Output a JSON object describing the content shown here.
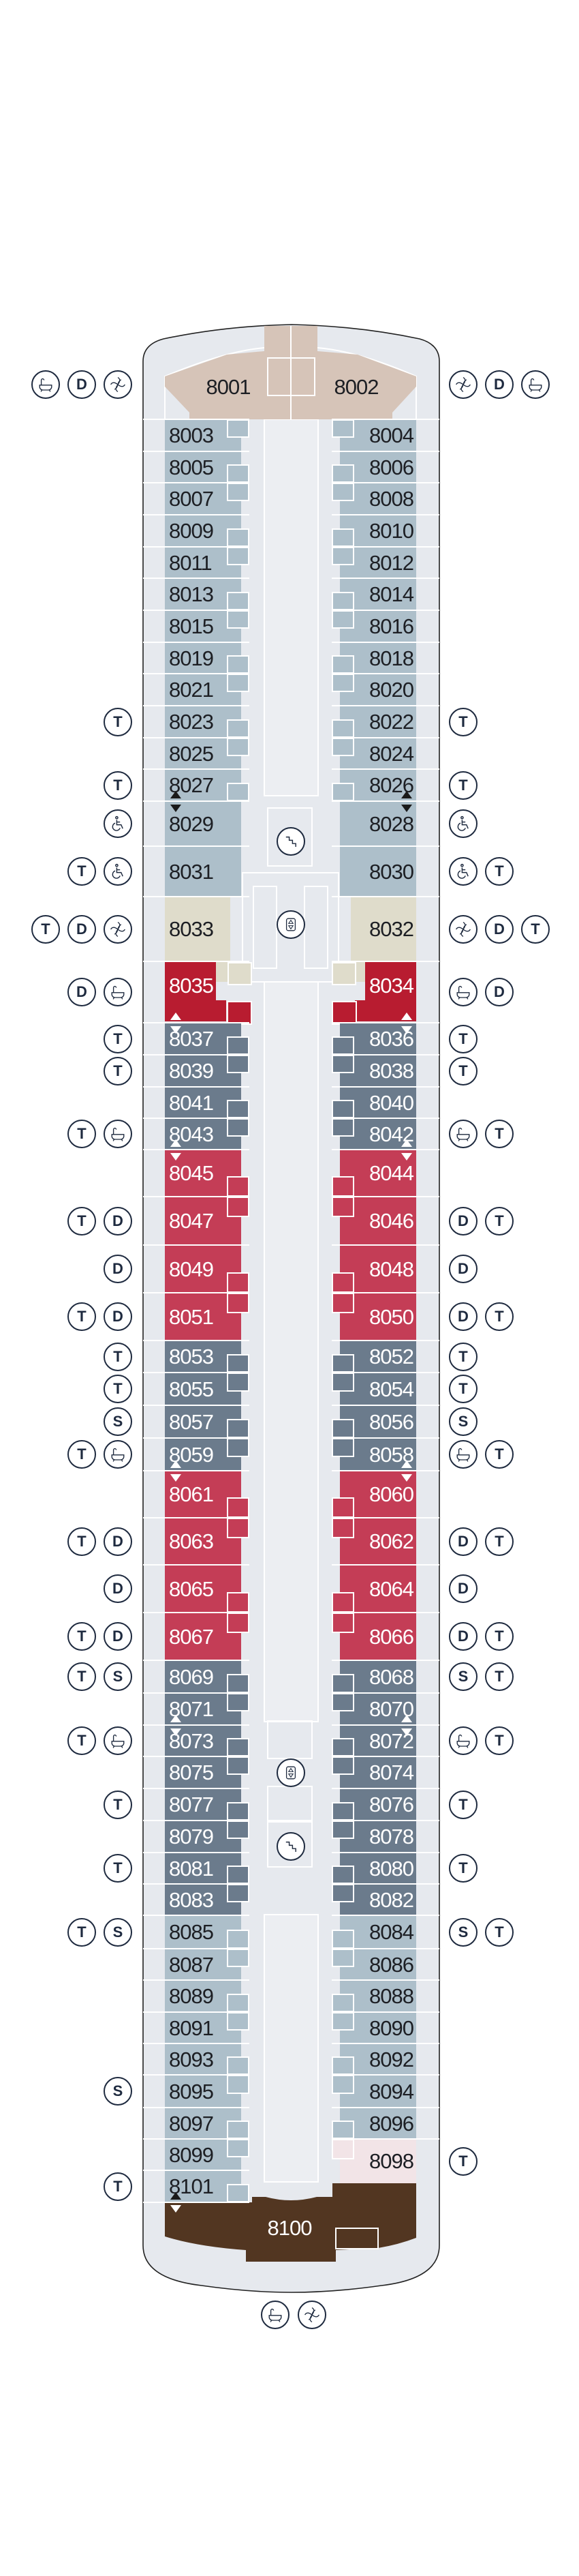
{
  "colors": {
    "hull": "#e6e9ee",
    "hull_outline": "#222222",
    "light": "#adbfca",
    "slate": "#6b7b8c",
    "red": "#c43d56",
    "darkred": "#b81c30",
    "beige": "#dfdccb",
    "tan": "#d6c4b8",
    "brown": "#523621",
    "pink": "#f2e4e7",
    "icon": "#1e2a3f"
  },
  "bow_suites": [
    {
      "number": "8001",
      "category": "tan",
      "icons": [
        "whirlpool",
        "D",
        "bathtub"
      ]
    },
    {
      "number": "8002",
      "category": "tan",
      "icons": [
        "whirlpool",
        "D",
        "bathtub"
      ]
    }
  ],
  "stern_suite": {
    "number": "8100",
    "category": "brown",
    "icons": [
      "bathtub",
      "whirlpool"
    ],
    "marker_top": "down-white"
  },
  "center_symbols": [
    "stairs",
    "elevator",
    "elevator",
    "stairs"
  ],
  "left_cabins": [
    {
      "number": "8003",
      "category": "light",
      "icons": []
    },
    {
      "number": "8005",
      "category": "light",
      "icons": []
    },
    {
      "number": "8007",
      "category": "light",
      "icons": []
    },
    {
      "number": "8009",
      "category": "light",
      "icons": []
    },
    {
      "number": "8011",
      "category": "light",
      "icons": []
    },
    {
      "number": "8013",
      "category": "light",
      "icons": []
    },
    {
      "number": "8015",
      "category": "light",
      "icons": []
    },
    {
      "number": "8019",
      "category": "light",
      "icons": []
    },
    {
      "number": "8021",
      "category": "light",
      "icons": []
    },
    {
      "number": "8023",
      "category": "light",
      "icons": [
        "T"
      ]
    },
    {
      "number": "8025",
      "category": "light",
      "icons": []
    },
    {
      "number": "8027",
      "category": "light",
      "icons": [
        "T"
      ],
      "marker_bottom": "up-black"
    },
    {
      "number": "8029",
      "category": "light",
      "icons": [
        "wheelchair"
      ],
      "marker_top": "down-black"
    },
    {
      "number": "8031",
      "category": "light",
      "icons": [
        "wheelchair",
        "T"
      ]
    },
    {
      "number": "8033",
      "category": "beige",
      "icons": [
        "whirlpool",
        "D",
        "T"
      ]
    },
    {
      "number": "8035",
      "category": "darkred",
      "icons": [
        "bathtub",
        "D"
      ],
      "marker_bottom": "up-white"
    },
    {
      "number": "8037",
      "category": "slate",
      "icons": [
        "T"
      ],
      "marker_top": "down-white"
    },
    {
      "number": "8039",
      "category": "slate",
      "icons": [
        "T"
      ]
    },
    {
      "number": "8041",
      "category": "slate",
      "icons": []
    },
    {
      "number": "8043",
      "category": "slate",
      "icons": [
        "bathtub",
        "T"
      ],
      "marker_bottom": "up-white"
    },
    {
      "number": "8045",
      "category": "red",
      "icons": [],
      "marker_top": "down-white"
    },
    {
      "number": "8047",
      "category": "red",
      "icons": [
        "D",
        "T"
      ]
    },
    {
      "number": "8049",
      "category": "red",
      "icons": [
        "D"
      ]
    },
    {
      "number": "8051",
      "category": "red",
      "icons": [
        "D",
        "T"
      ]
    },
    {
      "number": "8053",
      "category": "slate",
      "icons": [
        "T"
      ]
    },
    {
      "number": "8055",
      "category": "slate",
      "icons": [
        "T"
      ]
    },
    {
      "number": "8057",
      "category": "slate",
      "icons": [
        "S"
      ]
    },
    {
      "number": "8059",
      "category": "slate",
      "icons": [
        "bathtub",
        "T"
      ],
      "marker_bottom": "up-white"
    },
    {
      "number": "8061",
      "category": "red",
      "icons": [],
      "marker_top": "down-white"
    },
    {
      "number": "8063",
      "category": "red",
      "icons": [
        "D",
        "T"
      ]
    },
    {
      "number": "8065",
      "category": "red",
      "icons": [
        "D"
      ]
    },
    {
      "number": "8067",
      "category": "red",
      "icons": [
        "D",
        "T"
      ]
    },
    {
      "number": "8069",
      "category": "slate",
      "icons": [
        "S",
        "T"
      ]
    },
    {
      "number": "8071",
      "category": "slate",
      "icons": [],
      "marker_bottom": "up-white"
    },
    {
      "number": "8073",
      "category": "slate",
      "icons": [
        "bathtub",
        "T"
      ],
      "marker_top": "down-white"
    },
    {
      "number": "8075",
      "category": "slate",
      "icons": []
    },
    {
      "number": "8077",
      "category": "slate",
      "icons": [
        "T"
      ]
    },
    {
      "number": "8079",
      "category": "slate",
      "icons": []
    },
    {
      "number": "8081",
      "category": "slate",
      "icons": [
        "T"
      ]
    },
    {
      "number": "8083",
      "category": "slate",
      "icons": []
    },
    {
      "number": "8085",
      "category": "light",
      "icons": [
        "S",
        "T"
      ]
    },
    {
      "number": "8087",
      "category": "light",
      "icons": []
    },
    {
      "number": "8089",
      "category": "light",
      "icons": []
    },
    {
      "number": "8091",
      "category": "light",
      "icons": []
    },
    {
      "number": "8093",
      "category": "light",
      "icons": []
    },
    {
      "number": "8095",
      "category": "light",
      "icons": [
        "S"
      ]
    },
    {
      "number": "8097",
      "category": "light",
      "icons": []
    },
    {
      "number": "8099",
      "category": "light",
      "icons": []
    },
    {
      "number": "8101",
      "category": "light",
      "icons": [
        "T"
      ],
      "marker_bottom": "up-black"
    }
  ],
  "right_cabins": [
    {
      "number": "8004",
      "category": "light",
      "icons": []
    },
    {
      "number": "8006",
      "category": "light",
      "icons": []
    },
    {
      "number": "8008",
      "category": "light",
      "icons": []
    },
    {
      "number": "8010",
      "category": "light",
      "icons": []
    },
    {
      "number": "8012",
      "category": "light",
      "icons": []
    },
    {
      "number": "8014",
      "category": "light",
      "icons": []
    },
    {
      "number": "8016",
      "category": "light",
      "icons": []
    },
    {
      "number": "8018",
      "category": "light",
      "icons": []
    },
    {
      "number": "8020",
      "category": "light",
      "icons": []
    },
    {
      "number": "8022",
      "category": "light",
      "icons": [
        "T"
      ]
    },
    {
      "number": "8024",
      "category": "light",
      "icons": []
    },
    {
      "number": "8026",
      "category": "light",
      "icons": [
        "T"
      ],
      "marker_bottom": "up-black"
    },
    {
      "number": "8028",
      "category": "light",
      "icons": [
        "wheelchair"
      ],
      "marker_top": "down-black"
    },
    {
      "number": "8030",
      "category": "light",
      "icons": [
        "wheelchair",
        "T"
      ]
    },
    {
      "number": "8032",
      "category": "beige",
      "icons": [
        "whirlpool",
        "D",
        "T"
      ]
    },
    {
      "number": "8034",
      "category": "darkred",
      "icons": [
        "bathtub",
        "D"
      ],
      "marker_bottom": "up-white"
    },
    {
      "number": "8036",
      "category": "slate",
      "icons": [
        "T"
      ],
      "marker_top": "down-white"
    },
    {
      "number": "8038",
      "category": "slate",
      "icons": [
        "T"
      ]
    },
    {
      "number": "8040",
      "category": "slate",
      "icons": []
    },
    {
      "number": "8042",
      "category": "slate",
      "icons": [
        "bathtub",
        "T"
      ],
      "marker_bottom": "up-white"
    },
    {
      "number": "8044",
      "category": "red",
      "icons": [],
      "marker_top": "down-white"
    },
    {
      "number": "8046",
      "category": "red",
      "icons": [
        "D",
        "T"
      ]
    },
    {
      "number": "8048",
      "category": "red",
      "icons": [
        "D"
      ]
    },
    {
      "number": "8050",
      "category": "red",
      "icons": [
        "D",
        "T"
      ]
    },
    {
      "number": "8052",
      "category": "slate",
      "icons": [
        "T"
      ]
    },
    {
      "number": "8054",
      "category": "slate",
      "icons": [
        "T"
      ]
    },
    {
      "number": "8056",
      "category": "slate",
      "icons": [
        "S"
      ]
    },
    {
      "number": "8058",
      "category": "slate",
      "icons": [
        "bathtub",
        "T"
      ],
      "marker_bottom": "up-white"
    },
    {
      "number": "8060",
      "category": "red",
      "icons": [],
      "marker_top": "down-white"
    },
    {
      "number": "8062",
      "category": "red",
      "icons": [
        "D",
        "T"
      ]
    },
    {
      "number": "8064",
      "category": "red",
      "icons": [
        "D"
      ]
    },
    {
      "number": "8066",
      "category": "red",
      "icons": [
        "D",
        "T"
      ]
    },
    {
      "number": "8068",
      "category": "slate",
      "icons": [
        "S",
        "T"
      ]
    },
    {
      "number": "8070",
      "category": "slate",
      "icons": [],
      "marker_bottom": "up-white"
    },
    {
      "number": "8072",
      "category": "slate",
      "icons": [
        "bathtub",
        "T"
      ],
      "marker_top": "down-white"
    },
    {
      "number": "8074",
      "category": "slate",
      "icons": []
    },
    {
      "number": "8076",
      "category": "slate",
      "icons": [
        "T"
      ]
    },
    {
      "number": "8078",
      "category": "slate",
      "icons": []
    },
    {
      "number": "8080",
      "category": "slate",
      "icons": [
        "T"
      ]
    },
    {
      "number": "8082",
      "category": "slate",
      "icons": []
    },
    {
      "number": "8084",
      "category": "light",
      "icons": [
        "S",
        "T"
      ]
    },
    {
      "number": "8086",
      "category": "light",
      "icons": []
    },
    {
      "number": "8088",
      "category": "light",
      "icons": []
    },
    {
      "number": "8090",
      "category": "light",
      "icons": []
    },
    {
      "number": "8092",
      "category": "light",
      "icons": []
    },
    {
      "number": "8094",
      "category": "light",
      "icons": []
    },
    {
      "number": "8096",
      "category": "light",
      "icons": []
    },
    {
      "number": "8098",
      "category": "pink",
      "icons": [
        "T"
      ]
    }
  ]
}
